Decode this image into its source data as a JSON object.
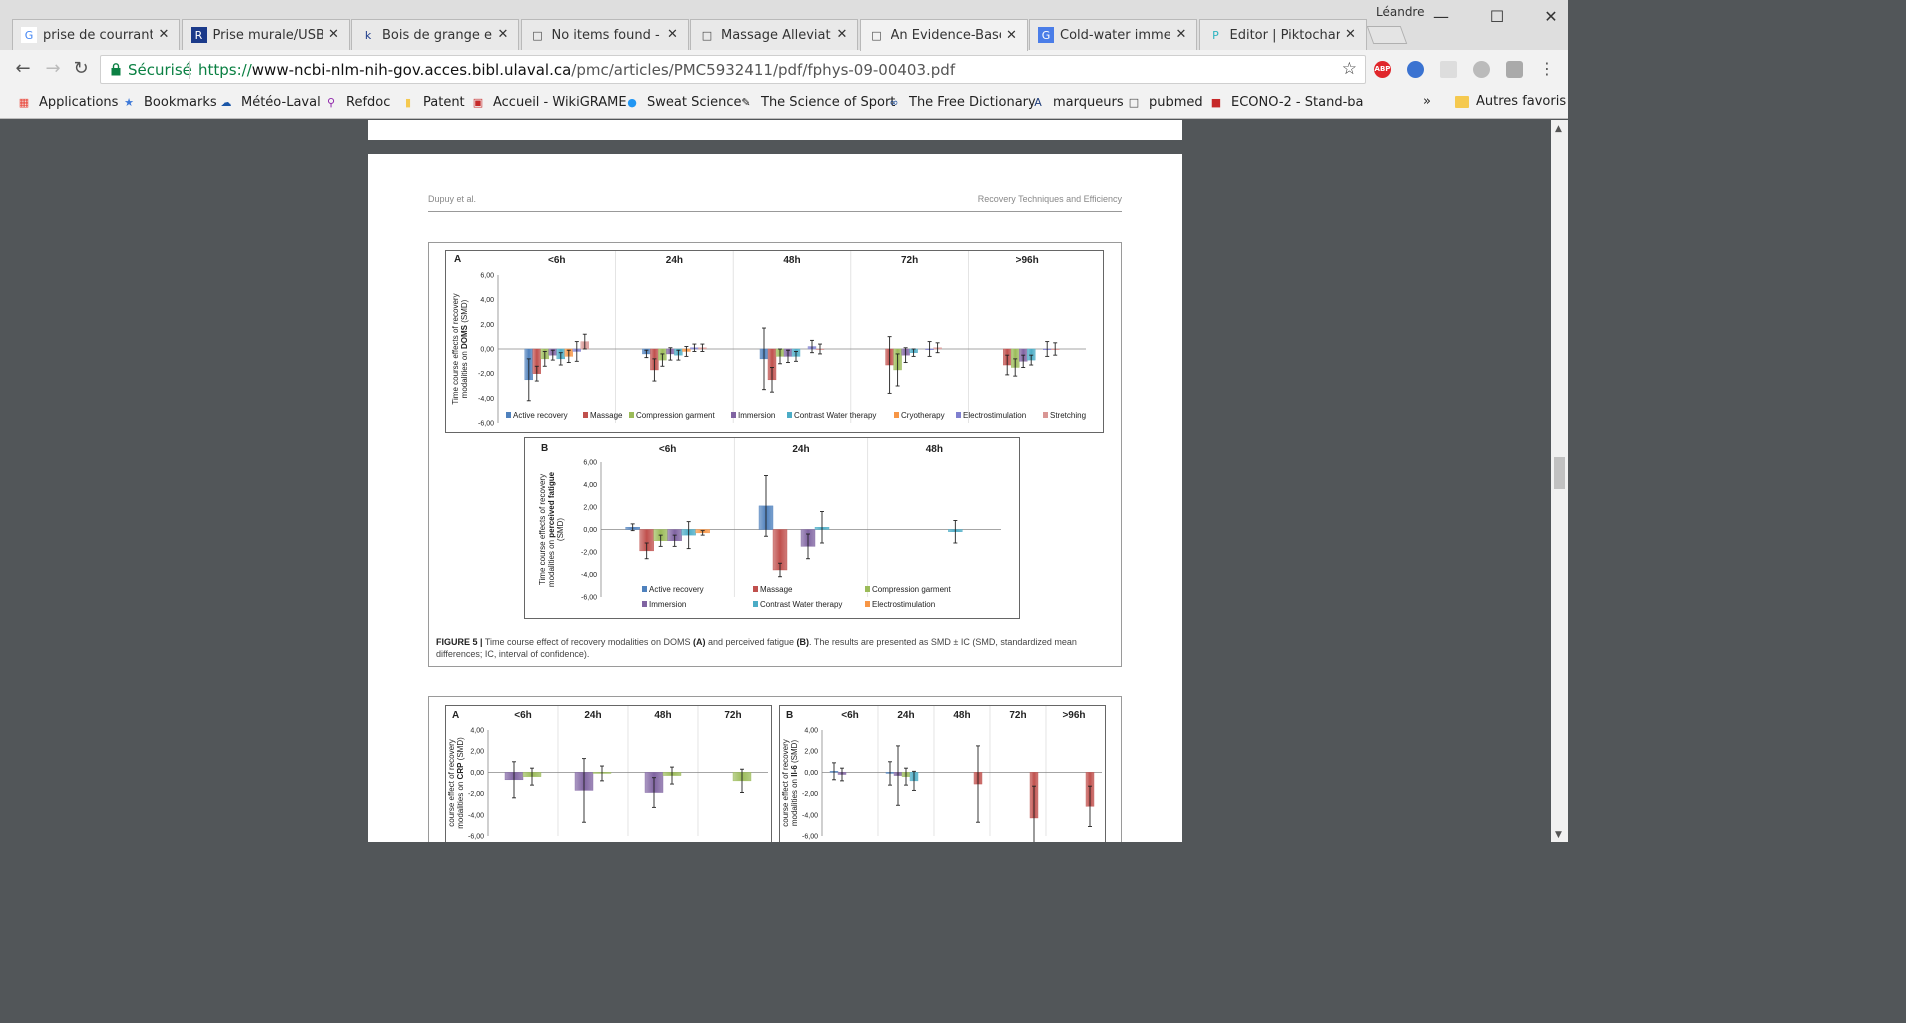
{
  "browser": {
    "user_name": "Léandre",
    "tabs": [
      {
        "title": "prise de courrant us",
        "icon": "google-icon",
        "active": false
      },
      {
        "title": "Prise murale/USB hy",
        "icon": "rona-icon",
        "active": false
      },
      {
        "title": "Bois de grange et m",
        "icon": "k-icon",
        "active": false
      },
      {
        "title": "No items found - Pu",
        "icon": "page-icon",
        "active": false
      },
      {
        "title": "Massage Alleviates",
        "icon": "page-icon",
        "active": false
      },
      {
        "title": "An Evidence-Based",
        "icon": "page-icon",
        "active": true
      },
      {
        "title": "Cold-water immersi",
        "icon": "scholar-icon",
        "active": false
      },
      {
        "title": "Editor | Piktochart",
        "icon": "piktochart-icon",
        "active": false
      }
    ],
    "secure_label": "Sécurisé",
    "url_scheme": "https://",
    "url_host": "www-ncbi-nlm-nih-gov.acces.bibl.ulaval.ca",
    "url_path": "/pmc/articles/PMC5932411/pdf/fphys-09-00403.pdf",
    "abp_label": "ABP",
    "bookmarks": [
      {
        "label": "Applications",
        "icon": "apps-grid-icon"
      },
      {
        "label": "Bookmarks",
        "icon": "star-icon"
      },
      {
        "label": "Météo-Laval",
        "icon": "weather-icon"
      },
      {
        "label": "Refdoc",
        "icon": "magnifier-icon"
      },
      {
        "label": "Patent",
        "icon": "folder-icon"
      },
      {
        "label": "Accueil - WikiGRAME",
        "icon": "wiki-icon"
      },
      {
        "label": "Sweat Science",
        "icon": "rw-icon"
      },
      {
        "label": "The Science of Sport",
        "icon": "runner-icon"
      },
      {
        "label": "The Free Dictionary",
        "icon": "tfd-icon"
      },
      {
        "label": "marqueurs",
        "icon": "a-icon"
      },
      {
        "label": "pubmed",
        "icon": "page-icon"
      },
      {
        "label": "ECONO-2 - Stand-ba",
        "icon": "econo-icon"
      }
    ],
    "bookmarks_overflow": "»",
    "other_bookmarks": "Autres favoris"
  },
  "document": {
    "header_left": "Dupuy et al.",
    "header_right": "Recovery Techniques and Efficiency",
    "figure5_caption_label": "FIGURE 5 |",
    "figure5_caption_text_1": " Time course effect of recovery modalities on DOMS ",
    "figure5_caption_a": "(A)",
    "figure5_caption_text_2": " and perceived fatigue ",
    "figure5_caption_b": "(B)",
    "figure5_caption_text_3": ". The results are presented as SMD ± IC (SMD, standardized mean differences; IC, interval of confidence)."
  },
  "chart_data": [
    {
      "type": "bar",
      "panel": "A",
      "ylabel": "Time course effects of recovery modalities on DOMS (SMD)",
      "ylabel_line1": "Time course effects of recovery",
      "ylabel_line2_prefix": "modalities on ",
      "ylabel_line2_bold": "DOMS",
      "ylabel_line2_suffix": " (SMD)",
      "ylim": [
        -6,
        6
      ],
      "yticks": [
        "6,00",
        "4,00",
        "2,00",
        "0,00",
        "-2,00",
        "-4,00",
        "-6,00"
      ],
      "categories": [
        "<6h",
        "24h",
        "48h",
        "72h",
        ">96h"
      ],
      "colors": [
        "#4f81bd",
        "#c0504d",
        "#9bbb59",
        "#8064a2",
        "#4bacc6",
        "#f79646",
        "#7f7fcf",
        "#d99694"
      ],
      "series": [
        {
          "name": "Active recovery",
          "values": [
            -2.5,
            -0.4,
            -0.8,
            null,
            null
          ],
          "err": [
            1.7,
            0.3,
            2.5,
            null,
            null
          ]
        },
        {
          "name": "Massage",
          "values": [
            -2.0,
            -1.7,
            -2.5,
            -1.3,
            -1.3
          ],
          "err": [
            0.6,
            0.9,
            1.0,
            2.3,
            0.8
          ]
        },
        {
          "name": "Compression garment",
          "values": [
            -0.8,
            -0.9,
            -0.6,
            -1.7,
            -1.5
          ],
          "err": [
            0.6,
            0.5,
            0.6,
            1.3,
            0.7
          ]
        },
        {
          "name": "Immersion",
          "values": [
            -0.5,
            -0.4,
            -0.6,
            -0.5,
            -1.0
          ],
          "err": [
            0.4,
            0.5,
            0.5,
            0.6,
            0.5
          ]
        },
        {
          "name": "Contrast Water therapy",
          "values": [
            -0.8,
            -0.5,
            -0.6,
            -0.3,
            -0.9
          ],
          "err": [
            0.5,
            0.4,
            0.4,
            0.3,
            0.4
          ]
        },
        {
          "name": "Cryotherapy",
          "values": [
            -0.6,
            -0.2,
            null,
            null,
            null
          ],
          "err": [
            0.5,
            0.4,
            null,
            null,
            null
          ]
        },
        {
          "name": "Electrostimulation",
          "values": [
            -0.2,
            0.1,
            0.2,
            0.0,
            0.0
          ],
          "err": [
            0.8,
            0.3,
            0.5,
            0.6,
            0.6
          ]
        },
        {
          "name": "Stretching",
          "values": [
            0.6,
            0.1,
            0.0,
            0.1,
            0.0
          ],
          "err": [
            0.6,
            0.3,
            0.4,
            0.4,
            0.5
          ]
        }
      ],
      "legend": "bottom"
    },
    {
      "type": "bar",
      "panel": "B",
      "ylabel": "Time course effects of recovery modalities on perceived fatigue (SMD)",
      "ylabel_line1": "Time course effects of recovery",
      "ylabel_line2_prefix": "modalities on ",
      "ylabel_line2_bold": "perceived fatigue",
      "ylabel_line3": "(SMD)",
      "ylim": [
        -6,
        6
      ],
      "yticks": [
        "6,00",
        "4,00",
        "2,00",
        "0,00",
        "-2,00",
        "-4,00",
        "-6,00"
      ],
      "categories": [
        "<6h",
        "24h",
        "48h"
      ],
      "colors": [
        "#4f81bd",
        "#c0504d",
        "#9bbb59",
        "#8064a2",
        "#4bacc6",
        "#f79646"
      ],
      "series": [
        {
          "name": "Active recovery",
          "values": [
            0.2,
            2.1,
            null
          ],
          "err": [
            0.3,
            2.7,
            null
          ]
        },
        {
          "name": "Massage",
          "values": [
            -1.9,
            -3.6,
            null
          ],
          "err": [
            0.7,
            0.6,
            null
          ]
        },
        {
          "name": "Compression garment",
          "values": [
            -1.0,
            null,
            null
          ],
          "err": [
            0.5,
            null,
            null
          ]
        },
        {
          "name": "Immersion",
          "values": [
            -1.0,
            -1.5,
            null
          ],
          "err": [
            0.5,
            1.1,
            null
          ]
        },
        {
          "name": "Contrast Water therapy",
          "values": [
            -0.5,
            0.2,
            -0.2
          ],
          "err": [
            1.2,
            1.4,
            1.0
          ]
        },
        {
          "name": "Electrostimulation",
          "values": [
            -0.3,
            null,
            null
          ],
          "err": [
            0.2,
            null,
            null
          ]
        }
      ],
      "legend": "bottom"
    },
    {
      "type": "bar",
      "panel": "A",
      "ylabel": "course effect of recovery modalities on CRP (SMD)",
      "ylabel_line1": "course effect of recovery",
      "ylabel_line2_prefix": "modalities on ",
      "ylabel_line2_bold": "CRP",
      "ylabel_line2_suffix": " (SMD)",
      "ylim": [
        -6,
        4
      ],
      "yticks": [
        "4,00",
        "2,00",
        "0,00",
        "-2,00",
        "-4,00",
        "-6,00"
      ],
      "categories": [
        "<6h",
        "24h",
        "48h",
        "72h"
      ],
      "colors": [
        "#8064a2",
        "#9bbb59"
      ],
      "series": [
        {
          "values": [
            -0.7,
            -1.7,
            -1.9,
            null
          ],
          "err": [
            1.7,
            3.0,
            1.4,
            null
          ]
        },
        {
          "values": [
            -0.4,
            -0.1,
            -0.3,
            -0.8
          ],
          "err": [
            0.8,
            0.7,
            0.8,
            1.1
          ]
        }
      ]
    },
    {
      "type": "bar",
      "panel": "B",
      "ylabel": "course effect of recovery modalities on Il-6 (SMD)",
      "ylabel_line1": "course effect of recovery",
      "ylabel_line2_prefix": "modalities on ",
      "ylabel_line2_bold": "Il-6",
      "ylabel_line2_suffix": " (SMD)",
      "ylim": [
        -6,
        4
      ],
      "yticks": [
        "4,00",
        "2,00",
        "0,00",
        "-2,00",
        "-4,00",
        "-6,00"
      ],
      "categories": [
        "<6h",
        "24h",
        "48h",
        "72h",
        ">96h"
      ],
      "colors": [
        "#4f81bd",
        "#8064a2",
        "#9bbb59",
        "#4bacc6",
        "#c0504d"
      ],
      "series": [
        {
          "values": [
            0.1,
            -0.1,
            null,
            null,
            null
          ],
          "err": [
            0.8,
            1.1,
            null,
            null,
            null
          ]
        },
        {
          "values": [
            -0.2,
            -0.3,
            null,
            null,
            null
          ],
          "err": [
            0.6,
            2.8,
            null,
            null,
            null
          ]
        },
        {
          "values": [
            null,
            -0.4,
            null,
            null,
            null
          ],
          "err": [
            null,
            0.8,
            null,
            null,
            null
          ]
        },
        {
          "values": [
            null,
            -0.8,
            null,
            null,
            null
          ],
          "err": [
            null,
            0.9,
            null,
            null,
            null
          ]
        },
        {
          "values": [
            null,
            null,
            -1.1,
            -4.3,
            -3.2
          ],
          "err": [
            null,
            null,
            3.6,
            3.0,
            1.9
          ]
        }
      ]
    }
  ]
}
